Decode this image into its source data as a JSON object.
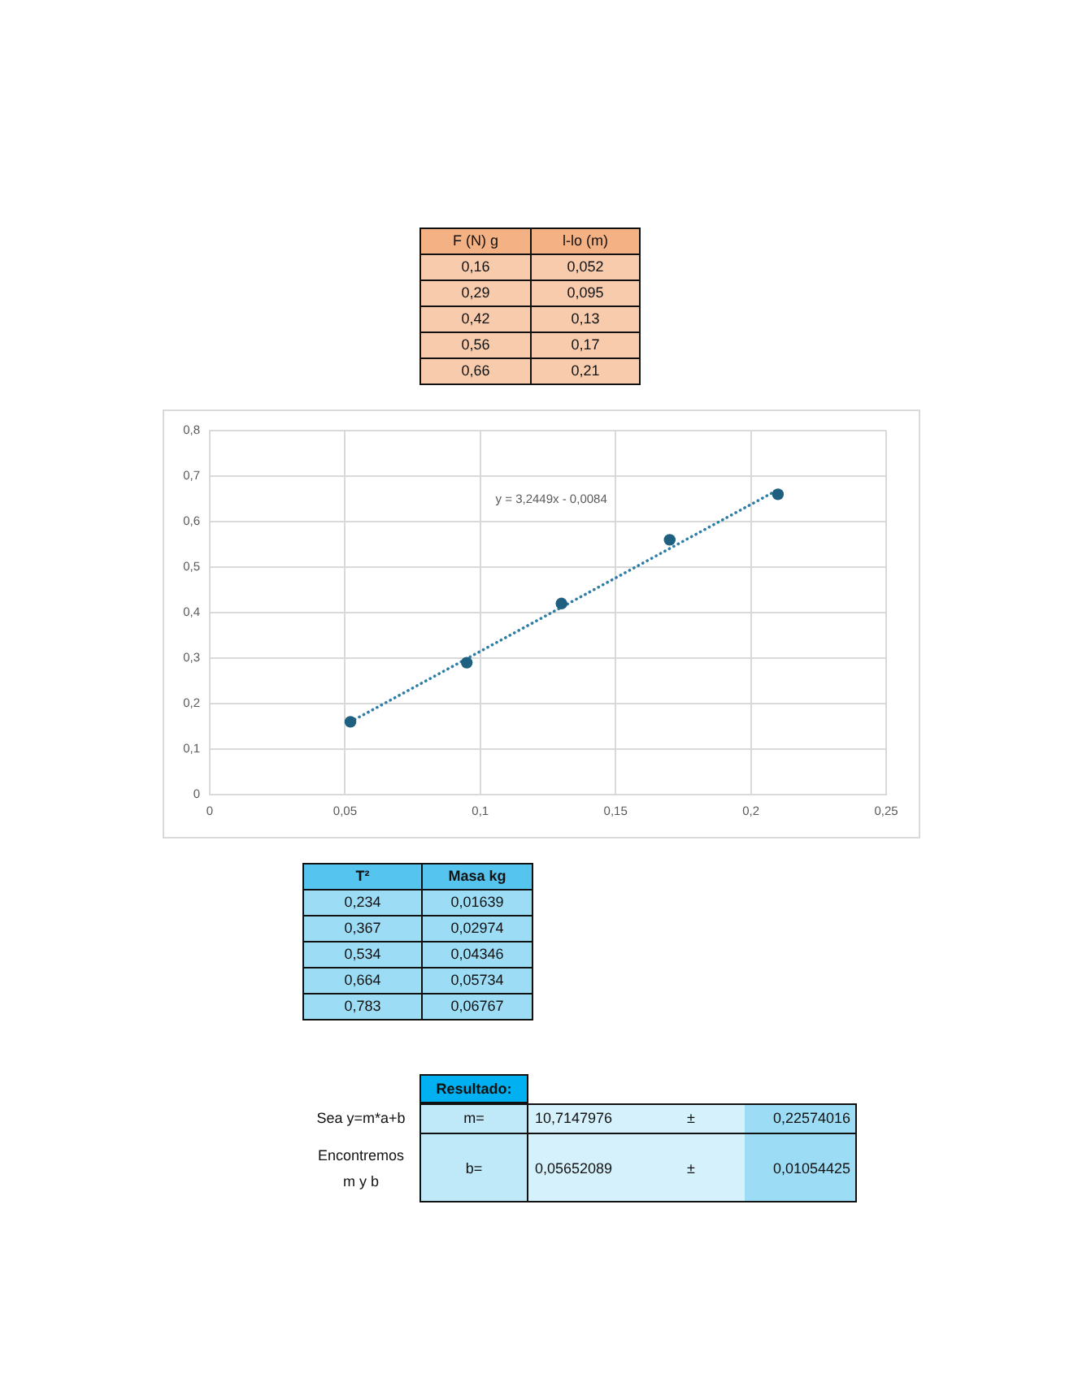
{
  "chart_data": [
    {
      "type": "other",
      "annotations": [
        "F (N) g",
        "l-lo (m)",
        "0,16",
        "0,052",
        "0,29",
        "0,095",
        "0,42",
        "0,13",
        "0,56",
        "0,17",
        "0,66",
        "0,21"
      ]
    },
    {
      "type": "scatter",
      "marker": "circle",
      "grid": true,
      "xlim": [
        0,
        0.25
      ],
      "xticks": [
        0,
        {
          "value": 0.05,
          "label": "0,05"
        },
        {
          "value": 0.1,
          "label": "0,1"
        },
        {
          "value": 0.15,
          "label": "0,15"
        },
        {
          "value": 0.2,
          "label": "0,2"
        },
        {
          "value": 0.25,
          "label": "0,25"
        }
      ],
      "ylim": [
        0,
        0.8
      ],
      "yticks": [
        0,
        {
          "value": 0.1,
          "label": "0,1"
        },
        {
          "value": 0.2,
          "label": "0,2"
        },
        {
          "value": 0.3,
          "label": "0,3"
        },
        {
          "value": 0.4,
          "label": "0,4"
        },
        {
          "value": 0.5,
          "label": "0,5"
        },
        {
          "value": 0.6,
          "label": "0,6"
        },
        {
          "value": 0.7,
          "label": "0,7"
        },
        {
          "value": 0.8,
          "label": "0,8"
        }
      ],
      "series": [
        {
          "color": "#1f5f7f",
          "x": [
            0.052,
            0.095,
            0.13,
            0.17,
            0.21
          ],
          "values": [
            0.16,
            0.29,
            0.42,
            0.56,
            0.66
          ]
        },
        {
          "type": "line",
          "color": "#2e7da6",
          "x": [
            0.052,
            0.21
          ],
          "values": [
            0.16,
            0.67
          ],
          "marker": "none",
          "line_style": "dotted"
        }
      ],
      "annotations": [
        "y = 3,2449x - 0,0084"
      ]
    },
    {
      "type": "other",
      "annotations": [
        "T²",
        "Masa kg",
        "0,234",
        "0,01639",
        "0,367",
        "0,02974",
        "0,534",
        "0,04346",
        "0,664",
        "0,05734",
        "0,783",
        "0,06767"
      ]
    },
    {
      "type": "other",
      "annotations": [
        "Resultado:",
        "Sea y=m*a+b",
        "m=",
        "10,7147976",
        "±",
        "0,22574016",
        "Encontremos m y b",
        "b=",
        "0,05652089",
        "±",
        "0,01054425"
      ]
    }
  ]
}
